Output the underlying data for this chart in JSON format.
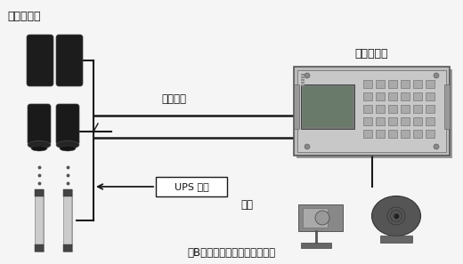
{
  "title": "（B）周界入侵报警系统示意图",
  "label_frontend": "前端探测器",
  "label_controller": "报警控制器",
  "label_transmission": "传输媒介",
  "label_ups": "UPS 电源",
  "label_alarm": "警号",
  "bg_color": "#f5f5f5",
  "line_color": "#1a1a1a",
  "text_color": "#111111"
}
